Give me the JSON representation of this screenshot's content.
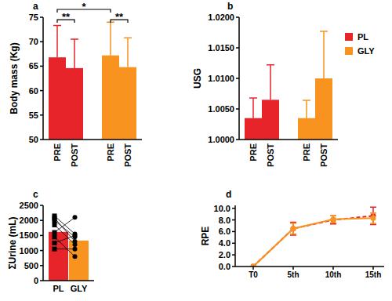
{
  "chart_data": [
    {
      "type": "bar",
      "panel": "a",
      "y_label": "Body mass (Kg)",
      "categories": [
        "PRE",
        "POST"
      ],
      "series": [
        {
          "name": "PL",
          "color": "#e8242b",
          "values": [
            66.8,
            64.6
          ],
          "errors": [
            6.5,
            5.9
          ]
        },
        {
          "name": "GLY",
          "color": "#f7931e",
          "values": [
            67.2,
            64.8
          ],
          "errors": [
            6.8,
            6.0
          ]
        }
      ],
      "ylim": [
        50,
        75
      ],
      "yticks": [
        50,
        55,
        60,
        65,
        70,
        75
      ],
      "annotations": [
        {
          "text": "**",
          "from": [
            0,
            0
          ],
          "to": [
            0,
            1
          ],
          "y": 74.5
        },
        {
          "text": "**",
          "from": [
            1,
            0
          ],
          "to": [
            1,
            1
          ],
          "y": 74.5
        },
        {
          "text": "*",
          "from": [
            0,
            0
          ],
          "to": [
            1,
            0
          ],
          "y": 76.6
        }
      ]
    },
    {
      "type": "bar",
      "panel": "b",
      "y_label": "USG",
      "categories": [
        "PRE",
        "POST"
      ],
      "series": [
        {
          "name": "PL",
          "color": "#e8242b",
          "values": [
            1.0035,
            1.0065
          ],
          "errors": [
            0.0033,
            0.0057
          ]
        },
        {
          "name": "GLY",
          "color": "#f7931e",
          "values": [
            1.0035,
            1.01
          ],
          "errors": [
            0.0029,
            0.0077
          ]
        }
      ],
      "ylim": [
        1.0,
        1.02
      ],
      "yticks": [
        {
          "value": 1.0,
          "label": "1.0000"
        },
        {
          "value": 1.005,
          "label": "1.0050"
        },
        {
          "value": 1.01,
          "label": "1.0100"
        },
        {
          "value": 1.015,
          "label": "1.0150"
        },
        {
          "value": 1.02,
          "label": "1.0200"
        }
      ],
      "legend": "right"
    },
    {
      "type": "bar",
      "panel": "c",
      "y_label": "ΣUrine (mL)",
      "categories": [
        "PL",
        "GLY"
      ],
      "values": [
        1620,
        1330
      ],
      "colors": [
        "#e8242b",
        "#f7931e"
      ],
      "individual": {
        "PL": [
          2150,
          2080,
          2000,
          1850,
          1600,
          1450,
          1250,
          1050
        ],
        "GLY": [
          1550,
          1300,
          1450,
          1200,
          2100,
          800,
          1500,
          1050
        ]
      },
      "ylim": [
        0,
        2500
      ],
      "yticks": [
        0,
        500,
        1000,
        1500,
        2000,
        2500
      ]
    },
    {
      "type": "line",
      "panel": "d",
      "y_label": "RPE",
      "categories": [
        "T0",
        "5th",
        "10th",
        "15th"
      ],
      "series": [
        {
          "color": "#e8242b",
          "line_style": "dashed",
          "marker": "circle",
          "values": [
            0,
            6.5,
            8.0,
            8.7
          ],
          "errors": [
            0,
            1.1,
            0.7,
            1.5
          ]
        },
        {
          "color": "#f7931e",
          "line_style": "solid",
          "marker": "circle",
          "values": [
            0,
            6.5,
            8.1,
            8.3
          ],
          "errors": [
            0,
            0.9,
            0.6,
            0.9
          ]
        }
      ],
      "ylim": [
        0,
        10.5
      ],
      "yticks": [
        {
          "value": 0,
          "label": "0.0"
        },
        {
          "value": 2,
          "label": "2.0"
        },
        {
          "value": 4,
          "label": "4.0"
        },
        {
          "value": 6,
          "label": "6.0"
        },
        {
          "value": 8,
          "label": "8.0"
        },
        {
          "value": 10,
          "label": "10.0"
        }
      ]
    }
  ]
}
